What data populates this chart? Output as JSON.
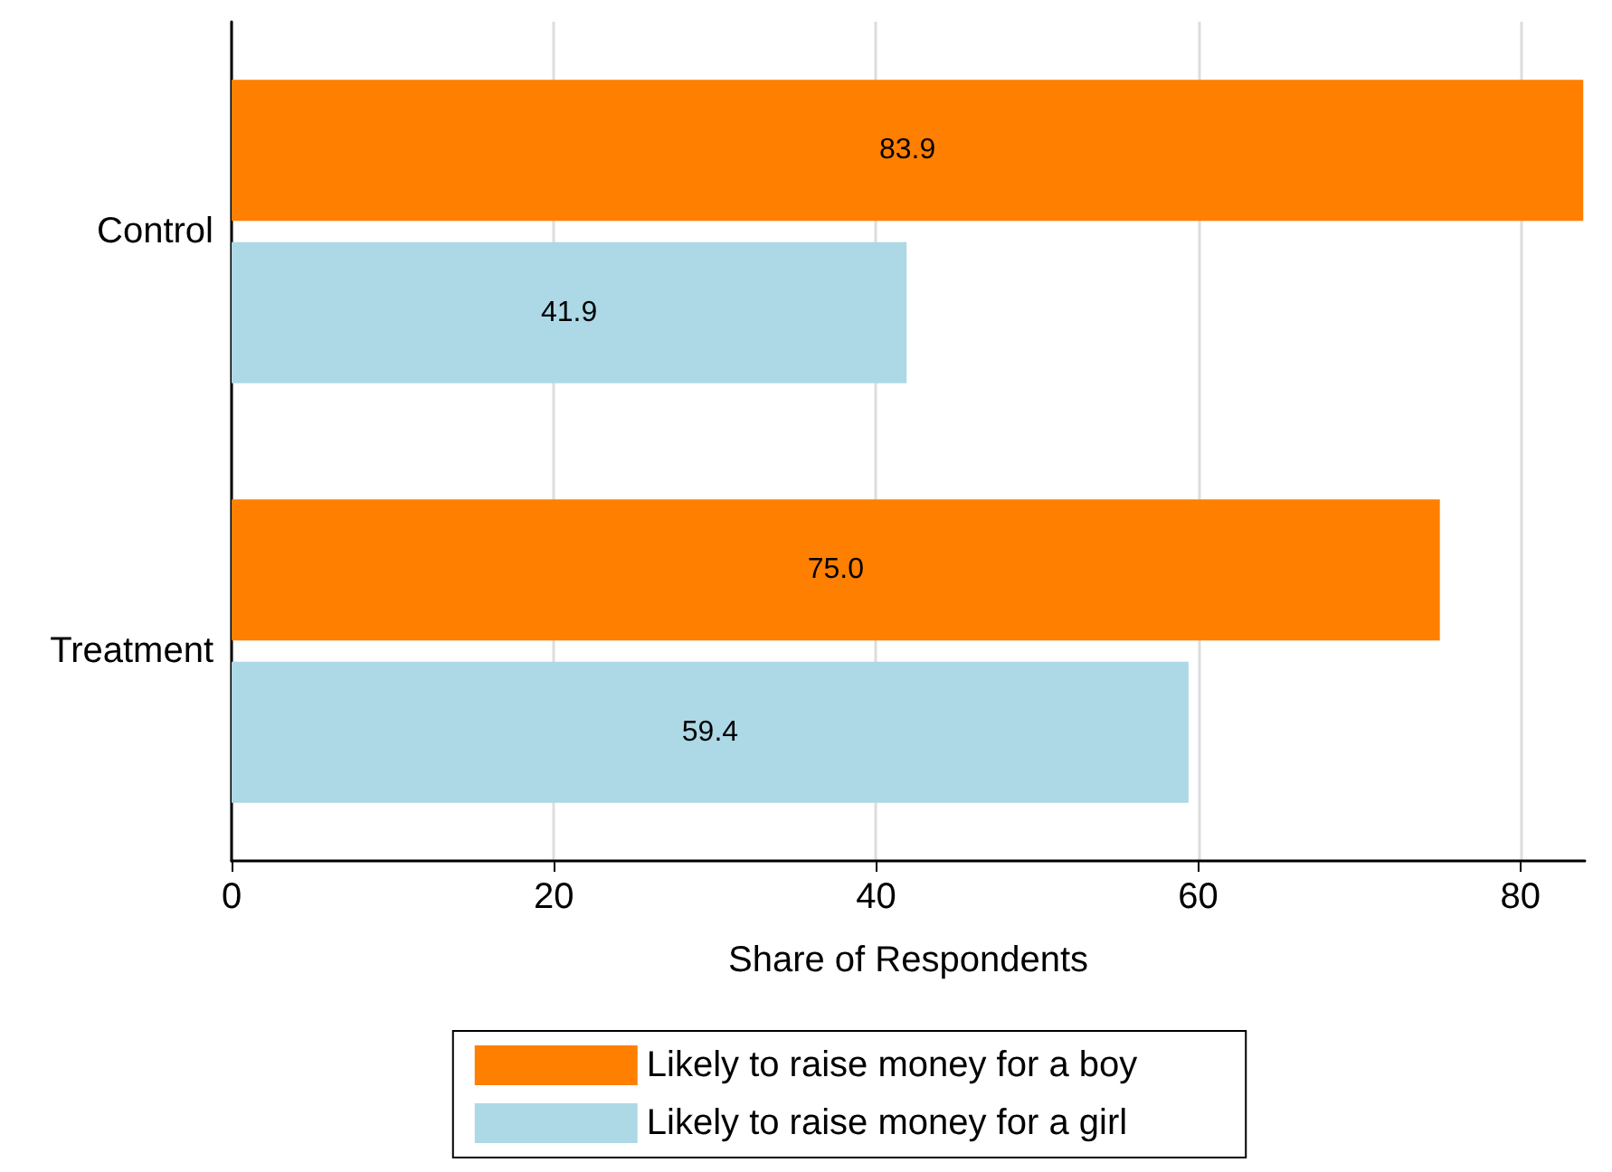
{
  "chart_data": {
    "type": "bar",
    "orientation": "horizontal",
    "categories": [
      "Control",
      "Treatment"
    ],
    "series": [
      {
        "name": "Likely to raise money for a boy",
        "color": "#ff7f00",
        "values": [
          83.9,
          75.0
        ],
        "value_labels": [
          "83.9",
          "75.0"
        ]
      },
      {
        "name": "Likely to raise money for a girl",
        "color": "#add8e6",
        "values": [
          41.9,
          59.4
        ],
        "value_labels": [
          "41.9",
          "59.4"
        ]
      }
    ],
    "xlabel": "Share of Respondents",
    "xlim": [
      0,
      84
    ],
    "xticks": [
      0,
      20,
      40,
      60,
      80
    ],
    "grid": "x",
    "legend": "bottom"
  }
}
